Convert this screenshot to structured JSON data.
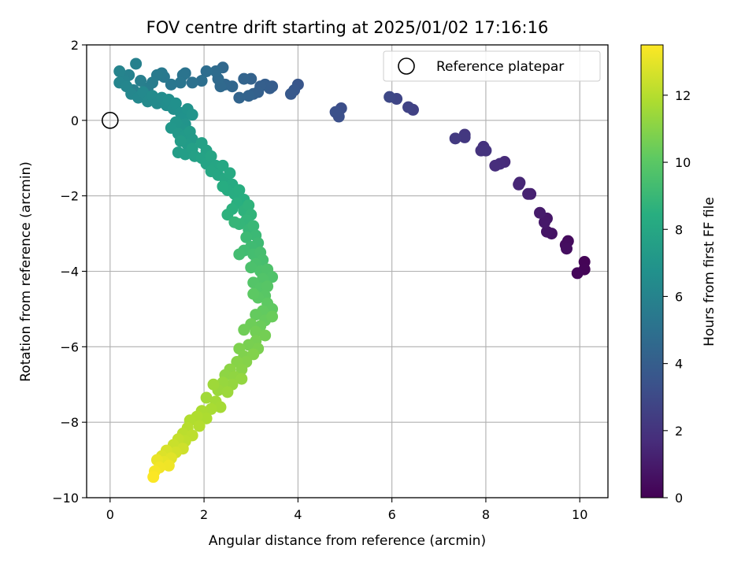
{
  "chart_data": {
    "type": "scatter",
    "title": "FOV centre drift starting at 2025/01/02 17:16:16",
    "xlabel": "Angular distance from reference (arcmin)",
    "ylabel": "Rotation from reference (arcmin)",
    "xlim": [
      -0.5,
      10.6
    ],
    "ylim": [
      -10,
      2
    ],
    "xticks": [
      0,
      2,
      4,
      6,
      8,
      10
    ],
    "yticks": [
      -10,
      -8,
      -6,
      -4,
      -2,
      0,
      2
    ],
    "grid": true,
    "legend": {
      "placement": "top-right",
      "entries": [
        "Reference platepar"
      ]
    },
    "reference_point": {
      "x": 0,
      "y": 0,
      "label": "Reference platepar"
    },
    "colorbar": {
      "label": "Hours from first FF file",
      "range": [
        0,
        13.5
      ],
      "ticks": [
        0,
        2,
        4,
        6,
        8,
        10,
        12
      ],
      "colormap": "viridis"
    },
    "points": [
      {
        "x": 10.1,
        "y": -3.75,
        "t": 0.1
      },
      {
        "x": 10.1,
        "y": -3.95,
        "t": 0.15
      },
      {
        "x": 9.95,
        "y": -4.05,
        "t": 0.2
      },
      {
        "x": 9.75,
        "y": -3.2,
        "t": 0.4
      },
      {
        "x": 9.7,
        "y": -3.3,
        "t": 0.45
      },
      {
        "x": 9.72,
        "y": -3.4,
        "t": 0.5
      },
      {
        "x": 9.4,
        "y": -3.0,
        "t": 0.7
      },
      {
        "x": 9.3,
        "y": -2.95,
        "t": 0.75
      },
      {
        "x": 9.3,
        "y": -2.6,
        "t": 0.85
      },
      {
        "x": 9.25,
        "y": -2.7,
        "t": 0.9
      },
      {
        "x": 9.15,
        "y": -2.45,
        "t": 1.0
      },
      {
        "x": 8.95,
        "y": -1.95,
        "t": 1.2
      },
      {
        "x": 8.9,
        "y": -1.95,
        "t": 1.25
      },
      {
        "x": 8.72,
        "y": -1.65,
        "t": 1.4
      },
      {
        "x": 8.7,
        "y": -1.7,
        "t": 1.45
      },
      {
        "x": 8.4,
        "y": -1.1,
        "t": 1.6
      },
      {
        "x": 8.3,
        "y": -1.15,
        "t": 1.7
      },
      {
        "x": 8.2,
        "y": -1.2,
        "t": 1.75
      },
      {
        "x": 7.95,
        "y": -0.7,
        "t": 1.9
      },
      {
        "x": 7.9,
        "y": -0.8,
        "t": 1.95
      },
      {
        "x": 8.0,
        "y": -0.8,
        "t": 2.0
      },
      {
        "x": 7.55,
        "y": -0.38,
        "t": 2.15
      },
      {
        "x": 7.55,
        "y": -0.45,
        "t": 2.2
      },
      {
        "x": 7.35,
        "y": -0.48,
        "t": 2.3
      },
      {
        "x": 6.45,
        "y": 0.28,
        "t": 2.6
      },
      {
        "x": 6.35,
        "y": 0.35,
        "t": 2.7
      },
      {
        "x": 6.1,
        "y": 0.57,
        "t": 2.8
      },
      {
        "x": 5.95,
        "y": 0.62,
        "t": 2.9
      },
      {
        "x": 4.92,
        "y": 0.32,
        "t": 3.2
      },
      {
        "x": 4.87,
        "y": 0.1,
        "t": 3.3
      },
      {
        "x": 4.8,
        "y": 0.22,
        "t": 3.35
      },
      {
        "x": 4.0,
        "y": 0.95,
        "t": 3.6
      },
      {
        "x": 3.92,
        "y": 0.8,
        "t": 3.7
      },
      {
        "x": 3.85,
        "y": 0.7,
        "t": 3.75
      },
      {
        "x": 3.45,
        "y": 0.9,
        "t": 3.9
      },
      {
        "x": 3.4,
        "y": 0.85,
        "t": 3.95
      },
      {
        "x": 3.3,
        "y": 0.95,
        "t": 4.0
      },
      {
        "x": 3.2,
        "y": 0.9,
        "t": 4.05
      },
      {
        "x": 3.15,
        "y": 0.75,
        "t": 4.1
      },
      {
        "x": 3.05,
        "y": 0.7,
        "t": 4.15
      },
      {
        "x": 3.0,
        "y": 1.1,
        "t": 4.2
      },
      {
        "x": 2.95,
        "y": 0.65,
        "t": 4.25
      },
      {
        "x": 2.85,
        "y": 1.1,
        "t": 4.3
      },
      {
        "x": 2.75,
        "y": 0.6,
        "t": 4.35
      },
      {
        "x": 2.6,
        "y": 0.9,
        "t": 4.45
      },
      {
        "x": 2.45,
        "y": 0.95,
        "t": 4.5
      },
      {
        "x": 2.4,
        "y": 1.4,
        "t": 4.55
      },
      {
        "x": 2.35,
        "y": 0.9,
        "t": 4.6
      },
      {
        "x": 2.3,
        "y": 1.1,
        "t": 4.65
      },
      {
        "x": 2.25,
        "y": 1.3,
        "t": 4.7
      },
      {
        "x": 2.05,
        "y": 1.3,
        "t": 4.8
      },
      {
        "x": 1.95,
        "y": 1.05,
        "t": 4.9
      },
      {
        "x": 1.75,
        "y": 1.0,
        "t": 5.0
      },
      {
        "x": 1.6,
        "y": 1.25,
        "t": 5.1
      },
      {
        "x": 1.55,
        "y": 1.2,
        "t": 5.15
      },
      {
        "x": 1.5,
        "y": 1.0,
        "t": 5.2
      },
      {
        "x": 1.3,
        "y": 0.95,
        "t": 5.3
      },
      {
        "x": 1.15,
        "y": 1.15,
        "t": 5.4
      },
      {
        "x": 1.1,
        "y": 1.25,
        "t": 5.45
      },
      {
        "x": 1.0,
        "y": 1.2,
        "t": 5.5
      },
      {
        "x": 0.9,
        "y": 1.0,
        "t": 5.6
      },
      {
        "x": 0.8,
        "y": 0.85,
        "t": 5.65
      },
      {
        "x": 0.65,
        "y": 1.05,
        "t": 5.75
      },
      {
        "x": 0.55,
        "y": 1.5,
        "t": 5.8
      },
      {
        "x": 0.5,
        "y": 0.8,
        "t": 5.85
      },
      {
        "x": 0.4,
        "y": 1.2,
        "t": 5.9
      },
      {
        "x": 0.3,
        "y": 1.05,
        "t": 6.0
      },
      {
        "x": 0.2,
        "y": 1.3,
        "t": 6.05
      },
      {
        "x": 0.2,
        "y": 1.0,
        "t": 6.1
      },
      {
        "x": 0.35,
        "y": 0.9,
        "t": 6.15
      },
      {
        "x": 0.45,
        "y": 0.7,
        "t": 6.2
      },
      {
        "x": 0.6,
        "y": 0.6,
        "t": 6.25
      },
      {
        "x": 0.7,
        "y": 0.75,
        "t": 6.3
      },
      {
        "x": 0.8,
        "y": 0.5,
        "t": 6.35
      },
      {
        "x": 0.9,
        "y": 0.65,
        "t": 6.4
      },
      {
        "x": 1.0,
        "y": 0.45,
        "t": 6.45
      },
      {
        "x": 1.1,
        "y": 0.6,
        "t": 6.5
      },
      {
        "x": 1.2,
        "y": 0.4,
        "t": 6.55
      },
      {
        "x": 1.25,
        "y": 0.55,
        "t": 6.6
      },
      {
        "x": 1.35,
        "y": 0.3,
        "t": 6.65
      },
      {
        "x": 1.4,
        "y": 0.45,
        "t": 6.7
      },
      {
        "x": 1.5,
        "y": 0.2,
        "t": 6.75
      },
      {
        "x": 1.55,
        "y": 0.05,
        "t": 6.8
      },
      {
        "x": 1.65,
        "y": 0.3,
        "t": 6.85
      },
      {
        "x": 1.75,
        "y": 0.15,
        "t": 6.9
      },
      {
        "x": 1.6,
        "y": -0.1,
        "t": 6.95
      },
      {
        "x": 1.5,
        "y": -0.2,
        "t": 7.0
      },
      {
        "x": 1.4,
        "y": -0.05,
        "t": 7.05
      },
      {
        "x": 1.3,
        "y": -0.2,
        "t": 7.1
      },
      {
        "x": 1.45,
        "y": -0.35,
        "t": 7.15
      },
      {
        "x": 1.6,
        "y": -0.4,
        "t": 7.2
      },
      {
        "x": 1.7,
        "y": -0.3,
        "t": 7.25
      },
      {
        "x": 1.75,
        "y": -0.5,
        "t": 7.3
      },
      {
        "x": 1.65,
        "y": -0.65,
        "t": 7.35
      },
      {
        "x": 1.5,
        "y": -0.55,
        "t": 7.4
      },
      {
        "x": 1.45,
        "y": -0.85,
        "t": 7.45
      },
      {
        "x": 1.6,
        "y": -0.9,
        "t": 7.5
      },
      {
        "x": 1.75,
        "y": -0.75,
        "t": 7.55
      },
      {
        "x": 1.8,
        "y": -0.95,
        "t": 7.6
      },
      {
        "x": 1.95,
        "y": -0.6,
        "t": 7.65
      },
      {
        "x": 2.05,
        "y": -0.8,
        "t": 7.7
      },
      {
        "x": 1.95,
        "y": -1.0,
        "t": 7.75
      },
      {
        "x": 2.05,
        "y": -1.15,
        "t": 7.8
      },
      {
        "x": 2.15,
        "y": -0.95,
        "t": 7.85
      },
      {
        "x": 2.25,
        "y": -1.2,
        "t": 7.9
      },
      {
        "x": 2.15,
        "y": -1.35,
        "t": 7.95
      },
      {
        "x": 2.3,
        "y": -1.45,
        "t": 8.0
      },
      {
        "x": 2.4,
        "y": -1.2,
        "t": 8.05
      },
      {
        "x": 2.45,
        "y": -1.55,
        "t": 8.1
      },
      {
        "x": 2.55,
        "y": -1.4,
        "t": 8.15
      },
      {
        "x": 2.6,
        "y": -1.7,
        "t": 8.2
      },
      {
        "x": 2.5,
        "y": -1.85,
        "t": 8.25
      },
      {
        "x": 2.4,
        "y": -1.75,
        "t": 8.3
      },
      {
        "x": 2.65,
        "y": -1.95,
        "t": 8.35
      },
      {
        "x": 2.75,
        "y": -1.85,
        "t": 8.4
      },
      {
        "x": 2.85,
        "y": -2.1,
        "t": 8.45
      },
      {
        "x": 2.7,
        "y": -2.2,
        "t": 8.5
      },
      {
        "x": 2.6,
        "y": -2.35,
        "t": 8.55
      },
      {
        "x": 2.5,
        "y": -2.5,
        "t": 8.6
      },
      {
        "x": 2.85,
        "y": -2.4,
        "t": 8.65
      },
      {
        "x": 2.95,
        "y": -2.25,
        "t": 8.7
      },
      {
        "x": 3.0,
        "y": -2.5,
        "t": 8.75
      },
      {
        "x": 2.9,
        "y": -2.65,
        "t": 8.8
      },
      {
        "x": 2.75,
        "y": -2.75,
        "t": 8.85
      },
      {
        "x": 2.65,
        "y": -2.7,
        "t": 8.9
      },
      {
        "x": 2.95,
        "y": -2.9,
        "t": 8.95
      },
      {
        "x": 3.05,
        "y": -2.8,
        "t": 9.0
      },
      {
        "x": 3.1,
        "y": -3.05,
        "t": 9.05
      },
      {
        "x": 2.9,
        "y": -3.1,
        "t": 9.1
      },
      {
        "x": 3.15,
        "y": -3.25,
        "t": 9.15
      },
      {
        "x": 3.0,
        "y": -3.35,
        "t": 9.2
      },
      {
        "x": 2.85,
        "y": -3.45,
        "t": 9.25
      },
      {
        "x": 2.75,
        "y": -3.55,
        "t": 9.3
      },
      {
        "x": 3.05,
        "y": -3.55,
        "t": 9.35
      },
      {
        "x": 3.2,
        "y": -3.5,
        "t": 9.4
      },
      {
        "x": 3.25,
        "y": -3.7,
        "t": 9.45
      },
      {
        "x": 3.1,
        "y": -3.8,
        "t": 9.5
      },
      {
        "x": 3.0,
        "y": -3.9,
        "t": 9.55
      },
      {
        "x": 3.2,
        "y": -4.0,
        "t": 9.6
      },
      {
        "x": 3.35,
        "y": -3.95,
        "t": 9.65
      },
      {
        "x": 3.45,
        "y": -4.15,
        "t": 9.7
      },
      {
        "x": 3.25,
        "y": -4.2,
        "t": 9.75
      },
      {
        "x": 3.05,
        "y": -4.3,
        "t": 9.8
      },
      {
        "x": 3.2,
        "y": -4.45,
        "t": 9.85
      },
      {
        "x": 3.35,
        "y": -4.4,
        "t": 9.9
      },
      {
        "x": 3.3,
        "y": -4.65,
        "t": 9.95
      },
      {
        "x": 3.15,
        "y": -4.7,
        "t": 10.0
      },
      {
        "x": 3.05,
        "y": -4.6,
        "t": 10.05
      },
      {
        "x": 3.35,
        "y": -4.85,
        "t": 10.1
      },
      {
        "x": 3.45,
        "y": -5.0,
        "t": 10.15
      },
      {
        "x": 3.25,
        "y": -5.05,
        "t": 10.2
      },
      {
        "x": 3.1,
        "y": -5.15,
        "t": 10.25
      },
      {
        "x": 3.3,
        "y": -5.3,
        "t": 10.3
      },
      {
        "x": 3.45,
        "y": -5.2,
        "t": 10.35
      },
      {
        "x": 3.2,
        "y": -5.45,
        "t": 10.4
      },
      {
        "x": 3.0,
        "y": -5.4,
        "t": 10.45
      },
      {
        "x": 2.85,
        "y": -5.55,
        "t": 10.5
      },
      {
        "x": 3.1,
        "y": -5.6,
        "t": 10.55
      },
      {
        "x": 3.3,
        "y": -5.7,
        "t": 10.6
      },
      {
        "x": 3.1,
        "y": -5.85,
        "t": 10.65
      },
      {
        "x": 2.95,
        "y": -5.95,
        "t": 10.7
      },
      {
        "x": 3.15,
        "y": -6.05,
        "t": 10.75
      },
      {
        "x": 2.75,
        "y": -6.05,
        "t": 10.8
      },
      {
        "x": 2.85,
        "y": -6.25,
        "t": 10.85
      },
      {
        "x": 3.05,
        "y": -6.2,
        "t": 10.9
      },
      {
        "x": 2.9,
        "y": -6.4,
        "t": 10.95
      },
      {
        "x": 2.7,
        "y": -6.4,
        "t": 11.0
      },
      {
        "x": 2.8,
        "y": -6.6,
        "t": 11.05
      },
      {
        "x": 2.55,
        "y": -6.6,
        "t": 11.1
      },
      {
        "x": 2.45,
        "y": -6.75,
        "t": 11.15
      },
      {
        "x": 2.65,
        "y": -6.8,
        "t": 11.2
      },
      {
        "x": 2.8,
        "y": -6.85,
        "t": 11.25
      },
      {
        "x": 2.6,
        "y": -7.0,
        "t": 11.3
      },
      {
        "x": 2.4,
        "y": -6.95,
        "t": 11.35
      },
      {
        "x": 2.3,
        "y": -7.15,
        "t": 11.4
      },
      {
        "x": 2.5,
        "y": -7.2,
        "t": 11.45
      },
      {
        "x": 2.2,
        "y": -7.0,
        "t": 11.5
      },
      {
        "x": 2.05,
        "y": -7.35,
        "t": 11.55
      },
      {
        "x": 2.25,
        "y": -7.45,
        "t": 11.6
      },
      {
        "x": 2.35,
        "y": -7.6,
        "t": 11.65
      },
      {
        "x": 2.15,
        "y": -7.65,
        "t": 11.7
      },
      {
        "x": 1.95,
        "y": -7.7,
        "t": 11.75
      },
      {
        "x": 2.05,
        "y": -7.9,
        "t": 11.8
      },
      {
        "x": 1.85,
        "y": -7.85,
        "t": 11.85
      },
      {
        "x": 1.7,
        "y": -7.95,
        "t": 11.9
      },
      {
        "x": 1.9,
        "y": -8.1,
        "t": 11.95
      },
      {
        "x": 1.65,
        "y": -8.15,
        "t": 12.0
      },
      {
        "x": 1.55,
        "y": -8.3,
        "t": 12.1
      },
      {
        "x": 1.75,
        "y": -8.35,
        "t": 12.15
      },
      {
        "x": 1.6,
        "y": -8.5,
        "t": 12.2
      },
      {
        "x": 1.45,
        "y": -8.45,
        "t": 12.3
      },
      {
        "x": 1.35,
        "y": -8.6,
        "t": 12.4
      },
      {
        "x": 1.55,
        "y": -8.7,
        "t": 12.5
      },
      {
        "x": 1.4,
        "y": -8.8,
        "t": 12.6
      },
      {
        "x": 1.2,
        "y": -8.75,
        "t": 12.7
      },
      {
        "x": 1.1,
        "y": -8.9,
        "t": 12.8
      },
      {
        "x": 1.3,
        "y": -8.95,
        "t": 12.9
      },
      {
        "x": 1.15,
        "y": -9.05,
        "t": 13.0
      },
      {
        "x": 1.0,
        "y": -9.0,
        "t": 13.1
      },
      {
        "x": 1.25,
        "y": -9.15,
        "t": 13.2
      },
      {
        "x": 1.05,
        "y": -9.2,
        "t": 13.25
      },
      {
        "x": 0.95,
        "y": -9.3,
        "t": 13.35
      },
      {
        "x": 0.92,
        "y": -9.45,
        "t": 13.45
      }
    ]
  }
}
